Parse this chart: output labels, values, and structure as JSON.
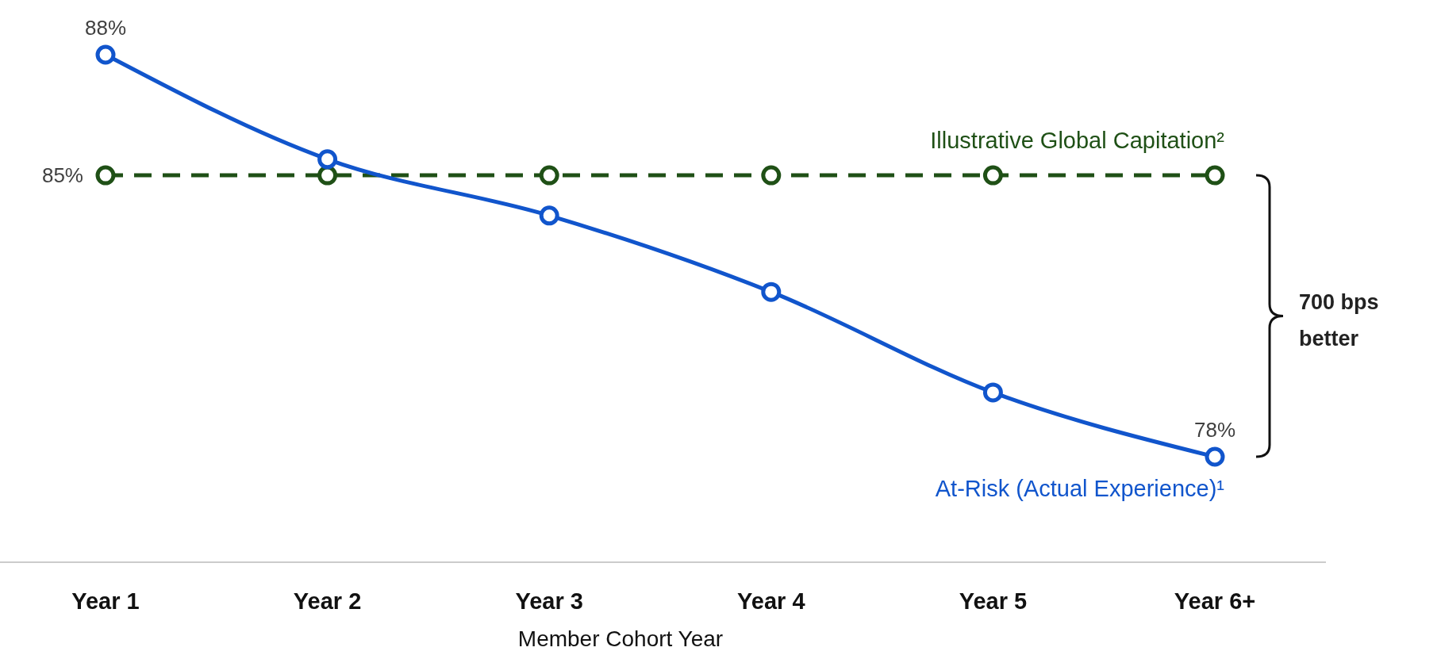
{
  "chart_data": {
    "type": "line",
    "xlabel": "Member Cohort Year",
    "categories": [
      "Year 1",
      "Year 2",
      "Year 3",
      "Year 4",
      "Year 5",
      "Year 6+"
    ],
    "tick_labels": "x",
    "marker": "circle",
    "series": [
      {
        "name": "Illustrative Global Capitation²",
        "color": "#1f5016",
        "line_style": "dashed",
        "values": [
          85,
          85,
          85,
          85,
          85,
          85
        ],
        "value_labels": [
          "85%",
          null,
          null,
          null,
          null,
          null
        ]
      },
      {
        "name": "At-Risk (Actual Experience)¹",
        "color": "#1155cc",
        "line_style": "solid",
        "values": [
          88,
          85.4,
          84.0,
          82.1,
          79.6,
          78
        ],
        "value_labels": [
          "88%",
          null,
          null,
          null,
          null,
          "78%"
        ]
      }
    ],
    "annotations": [
      "700 bps better"
    ]
  }
}
